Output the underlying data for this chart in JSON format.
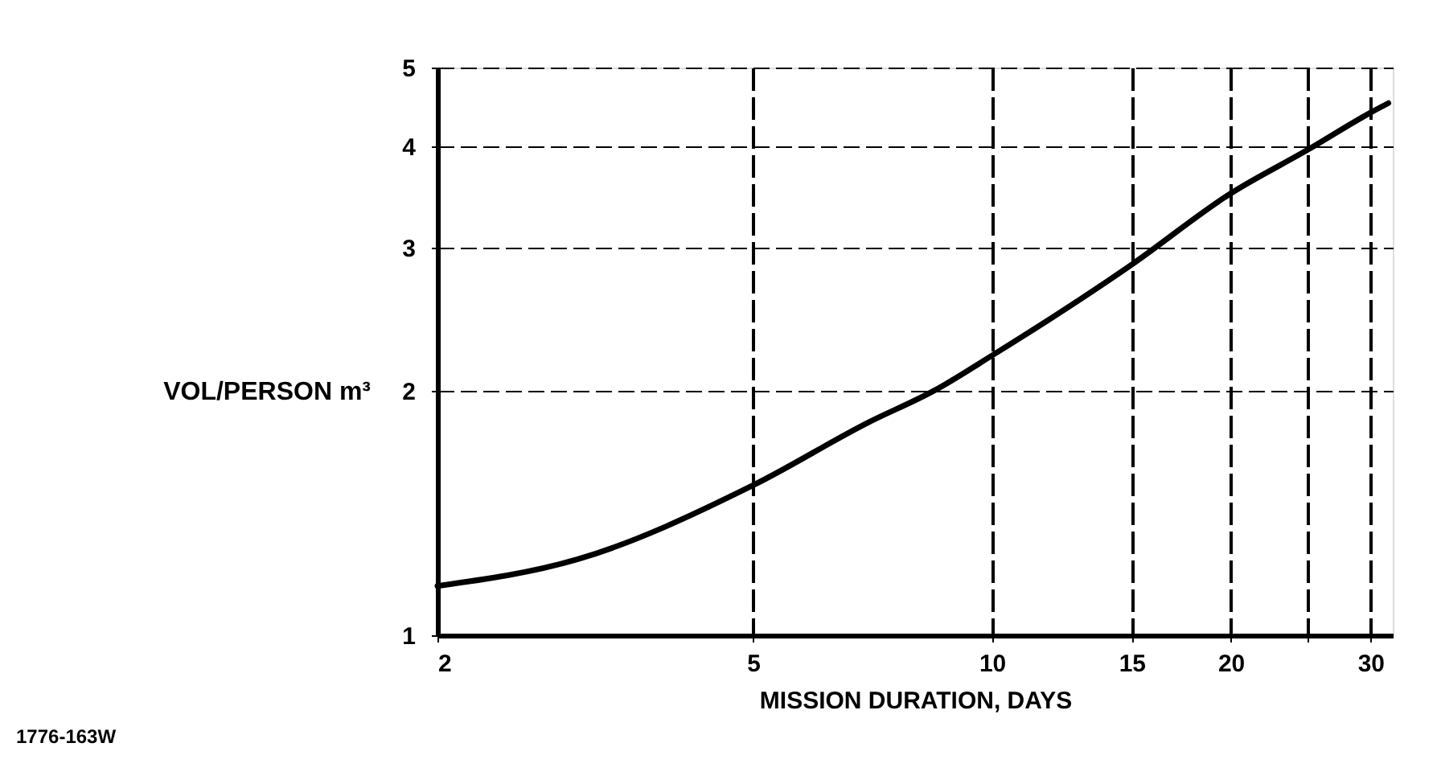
{
  "chart_data": {
    "type": "line",
    "xlabel": "MISSION DURATION, DAYS",
    "ylabel": "VOL/PERSON m³",
    "annotations": [
      "1776-163W"
    ],
    "log": "xy",
    "xlim": [
      2,
      32
    ],
    "xticks": [
      2,
      5,
      10,
      15,
      20,
      {
        "value": 25,
        "label": null
      },
      30
    ],
    "ylim": [
      1,
      5
    ],
    "yticks": [
      1,
      2,
      3,
      4,
      5
    ],
    "grid": true,
    "line_style": "solid",
    "marker": "none",
    "series": [
      {
        "color": "#000000",
        "x": [
          2,
          3,
          5,
          7,
          8.45,
          10,
          15,
          20,
          25,
          30,
          31.6
        ],
        "values": [
          1.15,
          1.24,
          1.53,
          1.83,
          2.0,
          2.21,
          2.86,
          3.5,
          3.96,
          4.4,
          4.52
        ]
      }
    ]
  }
}
